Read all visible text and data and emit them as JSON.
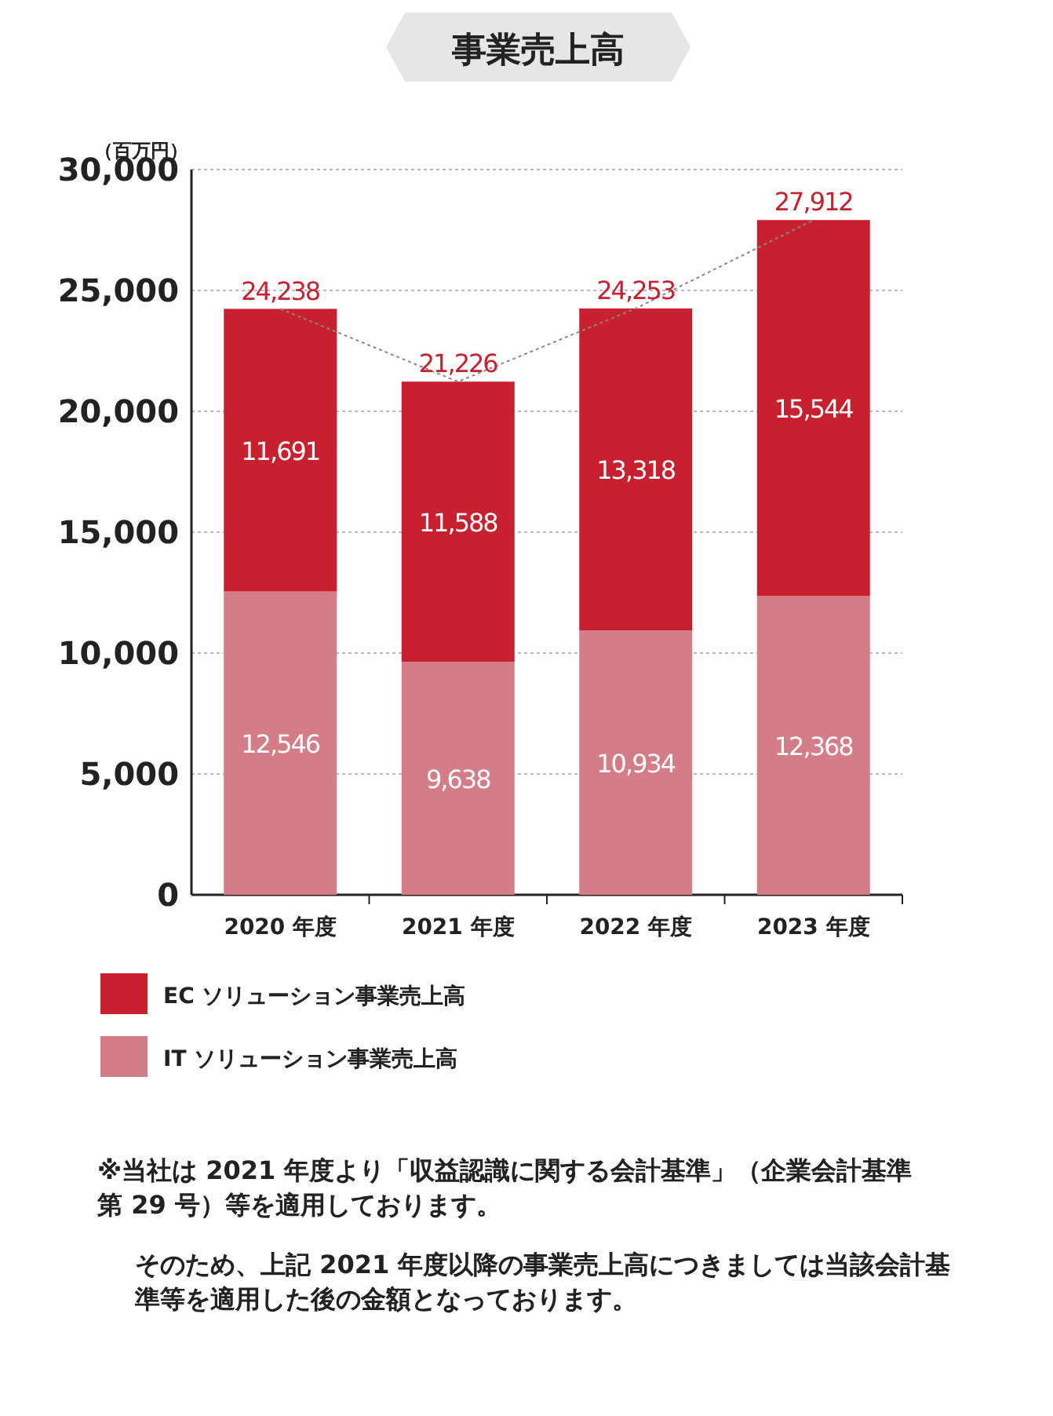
{
  "chart_data": {
    "type": "bar",
    "stacked": true,
    "title": "事業売上高",
    "ylabel": "（百万円）",
    "categories": [
      "2020 年度",
      "2021 年度",
      "2022 年度",
      "2023 年度"
    ],
    "series": [
      {
        "name": "IT ソリューション事業売上高",
        "color": "#d47c87",
        "values": [
          12546,
          9638,
          10934,
          12368
        ],
        "value_labels": [
          "12,546",
          "9,638",
          "10,934",
          "12,368"
        ]
      },
      {
        "name": "EC ソリューション事業売上高",
        "color": "#c8202f",
        "values": [
          11691,
          11588,
          13318,
          15544
        ],
        "value_labels": [
          "11,691",
          "11,588",
          "13,318",
          "15,544"
        ]
      },
      {
        "type": "line",
        "color": "#888888",
        "line_style": "dotted",
        "values": [
          24238,
          21226,
          24253,
          27912
        ]
      }
    ],
    "totals": [
      "24,238",
      "21,226",
      "24,253",
      "27,912"
    ],
    "ylim": [
      0,
      30000
    ],
    "yticks": [
      {
        "value": 0,
        "label": "0"
      },
      {
        "value": 5000,
        "label": "5,000"
      },
      {
        "value": 10000,
        "label": "10,000"
      },
      {
        "value": 15000,
        "label": "15,000"
      },
      {
        "value": 20000,
        "label": "20,000"
      },
      {
        "value": 25000,
        "label": "25,000"
      },
      {
        "value": 30000,
        "label": "30,000"
      }
    ],
    "grid": "y",
    "legend": "bottom left",
    "annotations": [
      "※当社は 2021 年度より「収益認識に関する会計基準」（企業会計基準第 29 号）等を適用しております。",
      "そのため、上記 2021 年度以降の事業売上高につきましては当該会計基準等を適用した後の金額となっております。"
    ]
  }
}
